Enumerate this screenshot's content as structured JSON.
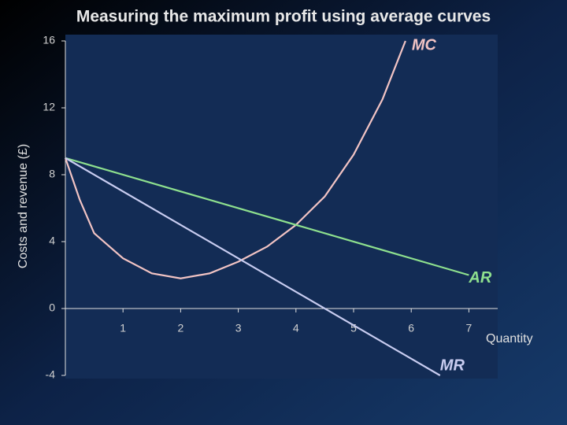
{
  "chart_data": {
    "type": "line",
    "title": "Measuring the maximum profit using average curves",
    "ylabel": "Costs and revenue (£)",
    "xlabel": "Quantity",
    "xlim": [
      0,
      7.5
    ],
    "ylim": [
      -4,
      16
    ],
    "xticks": [
      1,
      2,
      3,
      4,
      5,
      6,
      7
    ],
    "yticks": [
      -4,
      0,
      4,
      8,
      12,
      16
    ],
    "grid": false,
    "series": [
      {
        "name": "MC",
        "color": "#f2c4c4",
        "x": [
          0,
          0.25,
          0.5,
          1,
          1.5,
          2,
          2.5,
          3,
          3.5,
          4,
          4.5,
          5,
          5.5,
          5.9
        ],
        "values": [
          9,
          6.5,
          4.5,
          3,
          2.1,
          1.8,
          2.1,
          2.8,
          3.7,
          5,
          6.7,
          9.2,
          12.5,
          16
        ]
      },
      {
        "name": "AR",
        "color": "#8ee08e",
        "x": [
          0,
          7
        ],
        "values": [
          9,
          2
        ]
      },
      {
        "name": "MR",
        "color": "#c8ccf0",
        "x": [
          0,
          6.5
        ],
        "values": [
          9,
          -4
        ]
      }
    ]
  }
}
